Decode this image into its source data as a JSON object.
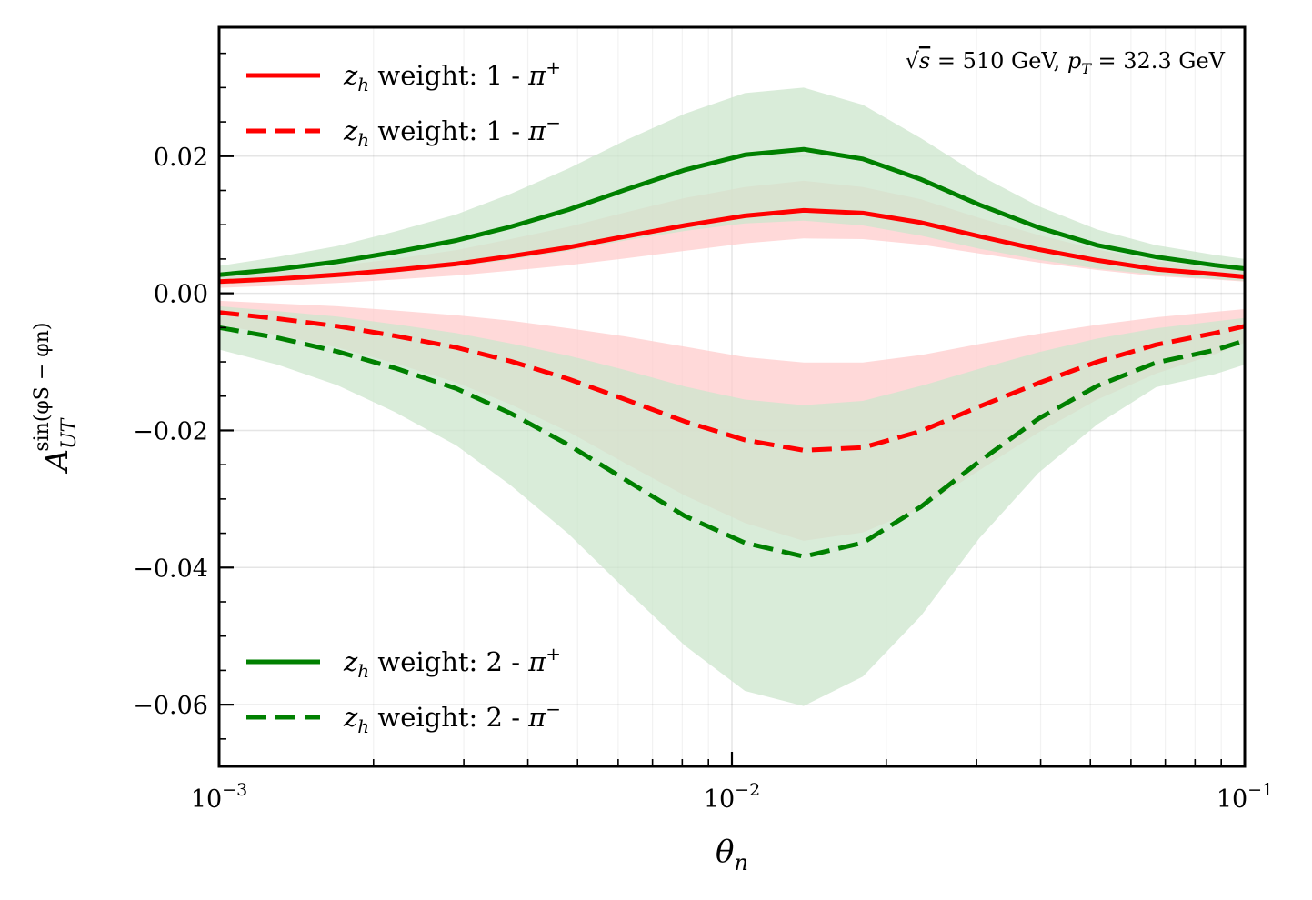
{
  "chart_data": {
    "type": "line",
    "title": "",
    "annotation": "√s = 510 GeV, p_T = 32.3 GeV",
    "annotation_parts": {
      "sqrt": "√",
      "s": "s",
      "eq1": " = 510 GeV, ",
      "p": "p",
      "sub": "T",
      "eq2": " = 32.3 GeV"
    },
    "xlabel": "θ_n",
    "xlabel_parts": {
      "main": "θ",
      "sub": "n"
    },
    "ylabel": "A_UT^{sin(φ_S − φ_n)}",
    "ylabel_parts": {
      "main": "A",
      "sub": "UT",
      "sup": "sin(φS − φn)"
    },
    "xscale": "log",
    "xlim": [
      0.001,
      0.1
    ],
    "ylim": [
      -0.069,
      0.0388
    ],
    "grid": true,
    "x_ticks": [
      {
        "value": 0.001,
        "base": "10",
        "exp": "−3"
      },
      {
        "value": 0.01,
        "base": "10",
        "exp": "−2"
      },
      {
        "value": 0.1,
        "base": "10",
        "exp": "−1"
      }
    ],
    "y_ticks": [
      {
        "value": 0.02,
        "label": "0.02"
      },
      {
        "value": 0.0,
        "label": "0.00"
      },
      {
        "value": -0.02,
        "label": "−0.02"
      },
      {
        "value": -0.04,
        "label": "−0.04"
      },
      {
        "value": -0.06,
        "label": "−0.06"
      }
    ],
    "x": [
      0.001,
      0.0013,
      0.0017,
      0.0022,
      0.0029,
      0.0037,
      0.0048,
      0.0062,
      0.0081,
      0.0106,
      0.0138,
      0.018,
      0.0234,
      0.0304,
      0.0396,
      0.0516,
      0.0672,
      0.0874,
      0.1
    ],
    "series": [
      {
        "name": "z_h weight: 1 - π+",
        "legend_main": "z",
        "legend_sub": "h",
        "legend_text": " weight: 1 - ",
        "legend_pi": "π",
        "legend_sup": "+",
        "color": "#ff0000",
        "band_color": "#ffcccc",
        "dash": "solid",
        "legend_group": "top",
        "values": [
          0.0017,
          0.0021,
          0.0027,
          0.0034,
          0.0043,
          0.0054,
          0.0067,
          0.0083,
          0.0099,
          0.0113,
          0.0121,
          0.0117,
          0.0103,
          0.0083,
          0.0064,
          0.0048,
          0.0035,
          0.0028,
          0.0024
        ],
        "lower": [
          0.0008,
          0.0011,
          0.0015,
          0.002,
          0.0026,
          0.0033,
          0.0041,
          0.0051,
          0.0062,
          0.0073,
          0.008,
          0.0079,
          0.0071,
          0.0058,
          0.0045,
          0.0034,
          0.0025,
          0.002,
          0.0017
        ],
        "upper": [
          0.0025,
          0.0031,
          0.004,
          0.005,
          0.0063,
          0.0079,
          0.0097,
          0.0118,
          0.0139,
          0.0155,
          0.0164,
          0.0155,
          0.0137,
          0.011,
          0.0085,
          0.0064,
          0.0047,
          0.0037,
          0.0032
        ]
      },
      {
        "name": "z_h weight: 1 - π−",
        "legend_main": "z",
        "legend_sub": "h",
        "legend_text": " weight: 1 - ",
        "legend_pi": "π",
        "legend_sup": "−",
        "color": "#ff0000",
        "band_color": "#ffcccc",
        "dash": "dashed",
        "legend_group": "top",
        "values": [
          -0.0028,
          -0.0037,
          -0.0048,
          -0.0062,
          -0.0079,
          -0.0099,
          -0.0125,
          -0.0155,
          -0.0187,
          -0.0214,
          -0.0229,
          -0.0225,
          -0.0201,
          -0.0165,
          -0.0131,
          -0.01,
          -0.0075,
          -0.0058,
          -0.0048
        ],
        "lower": [
          -0.0046,
          -0.0061,
          -0.0079,
          -0.0102,
          -0.013,
          -0.0162,
          -0.0202,
          -0.0248,
          -0.0295,
          -0.0335,
          -0.0361,
          -0.0349,
          -0.0313,
          -0.0258,
          -0.0203,
          -0.0155,
          -0.0117,
          -0.0089,
          -0.0072
        ],
        "upper": [
          -0.0011,
          -0.0015,
          -0.0019,
          -0.0025,
          -0.0032,
          -0.004,
          -0.0051,
          -0.0063,
          -0.0078,
          -0.0093,
          -0.0101,
          -0.0101,
          -0.009,
          -0.0074,
          -0.0059,
          -0.0046,
          -0.0035,
          -0.0027,
          -0.0023
        ]
      },
      {
        "name": "z_h weight: 2 - π+",
        "legend_main": "z",
        "legend_sub": "h",
        "legend_text": " weight: 2 - ",
        "legend_pi": "π",
        "legend_sup": "+",
        "color": "#008000",
        "band_color": "#cce6cc",
        "dash": "solid",
        "legend_group": "bottom",
        "values": [
          0.0027,
          0.0035,
          0.0046,
          0.006,
          0.0077,
          0.0097,
          0.0122,
          0.0151,
          0.018,
          0.0202,
          0.021,
          0.0196,
          0.0166,
          0.0129,
          0.0096,
          0.007,
          0.0053,
          0.0041,
          0.0036
        ],
        "lower": [
          0.0013,
          0.0017,
          0.0023,
          0.003,
          0.0039,
          0.0049,
          0.0062,
          0.0077,
          0.0091,
          0.0102,
          0.0106,
          0.0099,
          0.0084,
          0.0065,
          0.0049,
          0.0036,
          0.0027,
          0.0021,
          0.0018
        ],
        "upper": [
          0.004,
          0.0053,
          0.0069,
          0.009,
          0.0115,
          0.0145,
          0.0182,
          0.0223,
          0.0262,
          0.0292,
          0.03,
          0.0275,
          0.0226,
          0.0172,
          0.0127,
          0.0093,
          0.007,
          0.0056,
          0.005
        ]
      },
      {
        "name": "z_h weight: 2 - π−",
        "legend_main": "z",
        "legend_sub": "h",
        "legend_text": " weight: 2 - ",
        "legend_pi": "π",
        "legend_sup": "−",
        "color": "#008000",
        "band_color": "#cce6cc",
        "dash": "dashed",
        "legend_group": "bottom",
        "values": [
          -0.005,
          -0.0065,
          -0.0085,
          -0.0109,
          -0.0139,
          -0.0175,
          -0.0221,
          -0.0272,
          -0.0325,
          -0.0364,
          -0.0384,
          -0.0364,
          -0.0311,
          -0.0245,
          -0.0183,
          -0.0135,
          -0.0101,
          -0.0083,
          -0.0069
        ],
        "lower": [
          -0.0082,
          -0.0104,
          -0.0134,
          -0.0173,
          -0.0222,
          -0.028,
          -0.0351,
          -0.0432,
          -0.0514,
          -0.058,
          -0.0602,
          -0.0559,
          -0.047,
          -0.0357,
          -0.0262,
          -0.0191,
          -0.0137,
          -0.0118,
          -0.0104
        ],
        "upper": [
          -0.0019,
          -0.0026,
          -0.0034,
          -0.0045,
          -0.0058,
          -0.0073,
          -0.0091,
          -0.0112,
          -0.0136,
          -0.0155,
          -0.0163,
          -0.0157,
          -0.0135,
          -0.011,
          -0.0086,
          -0.0066,
          -0.0051,
          -0.0041,
          -0.0036
        ]
      }
    ]
  }
}
